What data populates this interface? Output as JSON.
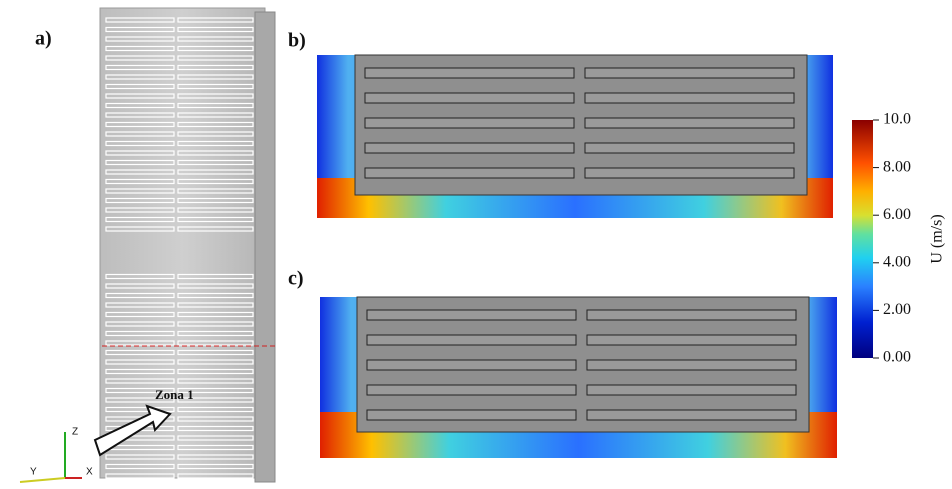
{
  "panels": {
    "a": {
      "label": "a)",
      "annotation": "Zona 1",
      "axes": {
        "z": "Z",
        "y": "Y",
        "x": "X"
      }
    },
    "b": {
      "label": "b)"
    },
    "c": {
      "label": "c)"
    }
  },
  "colorbar": {
    "title": "U (m/s)",
    "lim": [
      0,
      10
    ],
    "ticks": [
      {
        "value": 10,
        "label": "10.0"
      },
      {
        "value": 8,
        "label": "8.00"
      },
      {
        "value": 6,
        "label": "6.00"
      },
      {
        "value": 4,
        "label": "4.00"
      },
      {
        "value": 2,
        "label": "2.00"
      },
      {
        "value": 0,
        "label": "0.00"
      }
    ]
  }
}
